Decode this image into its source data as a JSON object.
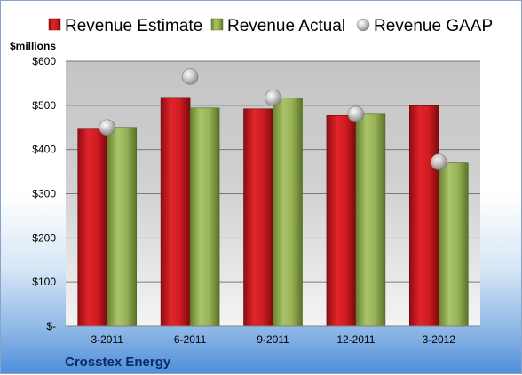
{
  "chart_data": {
    "type": "bar",
    "company": "Crosstex Energy",
    "unit_label": "$millions",
    "categories": [
      "3-2011",
      "6-2011",
      "9-2011",
      "12-2011",
      "3-2012"
    ],
    "series": [
      {
        "name": "Revenue Estimate",
        "kind": "bar",
        "color": "#c0151b",
        "values": [
          448,
          518,
          492,
          477,
          499
        ]
      },
      {
        "name": "Revenue Actual",
        "kind": "bar",
        "color": "#8ea64e",
        "values": [
          450,
          494,
          517,
          480,
          370
        ]
      },
      {
        "name": "Revenue GAAP",
        "kind": "marker",
        "color": "#b8b8b8",
        "values": [
          450,
          565,
          517,
          480,
          372
        ]
      }
    ],
    "y_ticks": [
      {
        "value": 0,
        "label": "$-"
      },
      {
        "value": 100,
        "label": "$100"
      },
      {
        "value": 200,
        "label": "$200"
      },
      {
        "value": 300,
        "label": "$300"
      },
      {
        "value": 400,
        "label": "$400"
      },
      {
        "value": 500,
        "label": "$500"
      },
      {
        "value": 600,
        "label": "$600"
      }
    ],
    "ylim": [
      0,
      600
    ],
    "grid": true,
    "legend_position": "top"
  }
}
